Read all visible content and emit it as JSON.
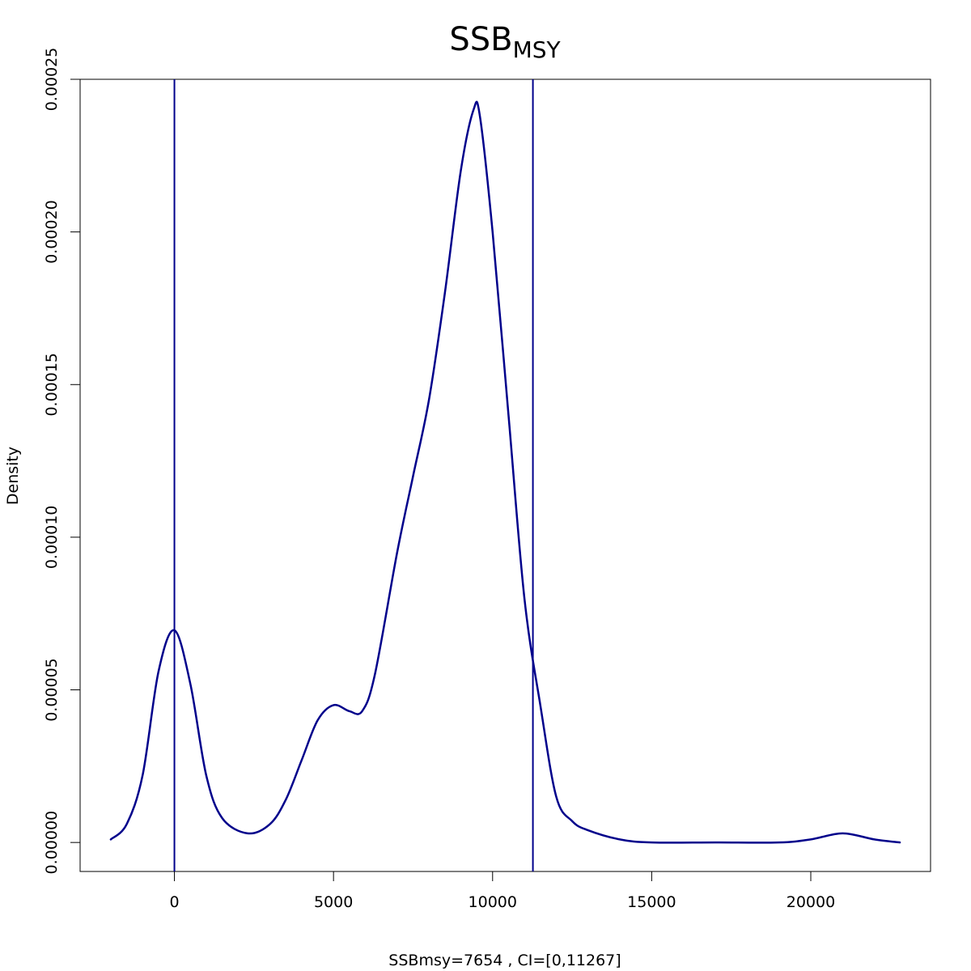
{
  "chart_data": {
    "type": "line",
    "title": "SSB",
    "title_subscript": "MSY",
    "xlabel": "SSBmsy=7654 , CI=[0,11267]",
    "ylabel": "Density",
    "xlim": [
      -2964,
      23764
    ],
    "ylim": [
      -9.5e-06,
      0.00025
    ],
    "x_ticks": [
      0,
      5000,
      10000,
      15000,
      20000
    ],
    "x_tick_labels": [
      "0",
      "5000",
      "10000",
      "15000",
      "20000"
    ],
    "y_ticks": [
      0.0,
      5e-05,
      0.0001,
      0.00015,
      0.0002,
      0.00025
    ],
    "y_tick_labels": [
      "0.00000",
      "0.00005",
      "0.00010",
      "0.00015",
      "0.00020",
      "0.00025"
    ],
    "grid": false,
    "legend": "none",
    "colors": {
      "line": "#00008B",
      "vline": "#00008B",
      "axis": "#000000"
    },
    "series": [
      {
        "x": [
          -2000,
          -1500,
          -1000,
          -500,
          0,
          500,
          1000,
          1500,
          2300,
          3000,
          3500,
          4000,
          4500,
          5000,
          5500,
          5900,
          6300,
          7000,
          7500,
          8000,
          8500,
          9000,
          9400,
          9600,
          10000,
          10500,
          11000,
          11500,
          12000,
          12500,
          13000,
          14000,
          15000,
          17000,
          19000,
          20000,
          21000,
          22000,
          22800
        ],
        "y": [
          1e-06,
          6e-06,
          2.2e-05,
          5.6e-05,
          6.95e-05,
          5.2e-05,
          2.2e-05,
          8e-06,
          3e-06,
          6e-06,
          1.4e-05,
          2.7e-05,
          4e-05,
          4.5e-05,
          4.3e-05,
          4.3e-05,
          5.5e-05,
          9.5e-05,
          0.00012,
          0.000145,
          0.00018,
          0.00022,
          0.00024,
          0.000238,
          0.0002,
          0.00014,
          8e-05,
          4.5e-05,
          1.5e-05,
          7e-06,
          4e-06,
          1e-06,
          0.0,
          0.0,
          0.0,
          1e-06,
          3e-06,
          1e-06,
          0.0
        ]
      }
    ],
    "vlines": [
      0,
      11267
    ]
  }
}
